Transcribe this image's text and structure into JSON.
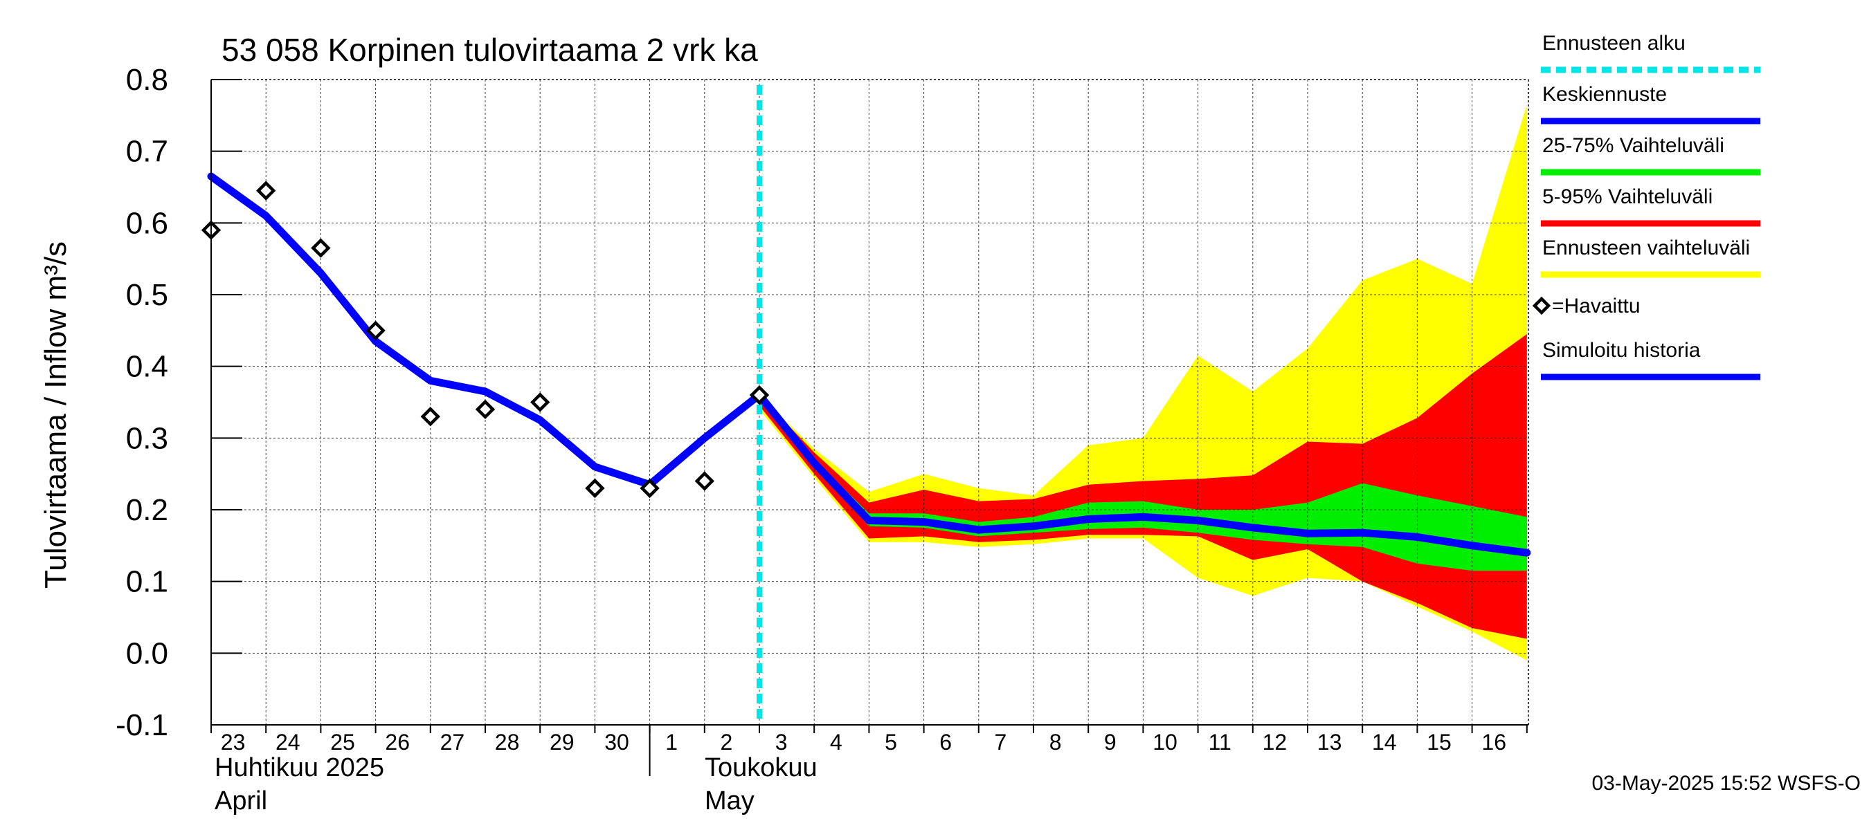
{
  "chart_data": {
    "type": "area",
    "title": "53 058 Korpinen tulovirtaama 2 vrk ka",
    "ylabel": "Tulovirtaama / Inflow    m³/s",
    "ylim": [
      -0.1,
      0.8
    ],
    "yticks": [
      "-0.1",
      "0.0",
      "0.1",
      "0.2",
      "0.3",
      "0.4",
      "0.5",
      "0.6",
      "0.7",
      "0.8"
    ],
    "grid": true,
    "x_tick_labels": [
      "23",
      "24",
      "25",
      "26",
      "27",
      "28",
      "29",
      "30",
      "1",
      "2",
      "3",
      "4",
      "5",
      "6",
      "7",
      "8",
      "9",
      "10",
      "11",
      "12",
      "13",
      "14",
      "15",
      "16"
    ],
    "x_dates": [
      "2025-04-23",
      "2025-04-24",
      "2025-04-25",
      "2025-04-26",
      "2025-04-27",
      "2025-04-28",
      "2025-04-29",
      "2025-04-30",
      "2025-05-01",
      "2025-05-02",
      "2025-05-03",
      "2025-05-04",
      "2025-05-05",
      "2025-05-06",
      "2025-05-07",
      "2025-05-08",
      "2025-05-09",
      "2025-05-10",
      "2025-05-11",
      "2025-05-12",
      "2025-05-13",
      "2025-05-14",
      "2025-05-15",
      "2025-05-16",
      "2025-05-17"
    ],
    "month_labels": {
      "april_fi": "Huhtikuu  2025",
      "april_en": "April",
      "may_fi": "Toukokuu",
      "may_en": "May"
    },
    "forecast_start": "2025-05-03",
    "legend_position": "right",
    "legend": [
      {
        "label": "Ennusteen alku",
        "color": "#00e5e5",
        "style": "dashed"
      },
      {
        "label": "Keskiennuste",
        "color": "#0000ff",
        "style": "solid"
      },
      {
        "label": "25-75% Vaihteluväli",
        "color": "#00ee00",
        "style": "solid"
      },
      {
        "label": "5-95% Vaihteluväli",
        "color": "#ff0000",
        "style": "solid"
      },
      {
        "label": "Ennusteen vaihteluväli",
        "color": "#ffff00",
        "style": "solid"
      },
      {
        "label": "=Havaittu",
        "color": "#000000",
        "style": "diamond"
      },
      {
        "label": "Simuloitu historia",
        "color": "#0000ff",
        "style": "solid"
      }
    ],
    "series": [
      {
        "name": "Simuloitu historia",
        "x": [
          "2025-04-23",
          "2025-04-24",
          "2025-04-25",
          "2025-04-26",
          "2025-04-27",
          "2025-04-28",
          "2025-04-29",
          "2025-04-30",
          "2025-05-01",
          "2025-05-02",
          "2025-05-03"
        ],
        "y": [
          0.665,
          0.61,
          0.53,
          0.435,
          0.38,
          0.365,
          0.325,
          0.26,
          0.235,
          0.3,
          0.36
        ]
      },
      {
        "name": "Keskiennuste",
        "x": [
          "2025-05-03",
          "2025-05-04",
          "2025-05-05",
          "2025-05-06",
          "2025-05-07",
          "2025-05-08",
          "2025-05-09",
          "2025-05-10",
          "2025-05-11",
          "2025-05-12",
          "2025-05-13",
          "2025-05-14",
          "2025-05-15",
          "2025-05-16",
          "2025-05-17"
        ],
        "y": [
          0.36,
          0.265,
          0.185,
          0.183,
          0.172,
          0.177,
          0.187,
          0.19,
          0.185,
          0.175,
          0.167,
          0.168,
          0.162,
          0.15,
          0.14
        ]
      },
      {
        "name": "=Havaittu",
        "x": [
          "2025-04-23",
          "2025-04-24",
          "2025-04-25",
          "2025-04-26",
          "2025-04-27",
          "2025-04-28",
          "2025-04-29",
          "2025-04-30",
          "2025-05-01",
          "2025-05-02",
          "2025-05-03"
        ],
        "y": [
          0.59,
          0.645,
          0.565,
          0.45,
          0.33,
          0.34,
          0.35,
          0.23,
          0.23,
          0.24,
          0.36
        ]
      }
    ],
    "bands": [
      {
        "name": "Ennusteen vaihteluväli",
        "x": [
          "2025-05-03",
          "2025-05-04",
          "2025-05-05",
          "2025-05-06",
          "2025-05-07",
          "2025-05-08",
          "2025-05-09",
          "2025-05-10",
          "2025-05-11",
          "2025-05-12",
          "2025-05-13",
          "2025-05-14",
          "2025-05-15",
          "2025-05-16",
          "2025-05-17"
        ],
        "upper": [
          0.36,
          0.285,
          0.225,
          0.25,
          0.23,
          0.22,
          0.29,
          0.3,
          0.415,
          0.365,
          0.425,
          0.52,
          0.55,
          0.515,
          0.765
        ],
        "lower": [
          0.34,
          0.245,
          0.155,
          0.155,
          0.148,
          0.152,
          0.16,
          0.16,
          0.105,
          0.08,
          0.105,
          0.1,
          0.065,
          0.03,
          -0.01
        ]
      },
      {
        "name": "5-95% Vaihteluväli",
        "x": [
          "2025-05-03",
          "2025-05-04",
          "2025-05-05",
          "2025-05-06",
          "2025-05-07",
          "2025-05-08",
          "2025-05-09",
          "2025-05-10",
          "2025-05-11",
          "2025-05-12",
          "2025-05-13",
          "2025-05-14",
          "2025-05-15",
          "2025-05-16",
          "2025-05-17"
        ],
        "upper": [
          0.36,
          0.28,
          0.21,
          0.228,
          0.212,
          0.215,
          0.235,
          0.24,
          0.243,
          0.248,
          0.295,
          0.292,
          0.328,
          0.39,
          0.445
        ],
        "lower": [
          0.345,
          0.25,
          0.16,
          0.163,
          0.155,
          0.158,
          0.165,
          0.165,
          0.163,
          0.13,
          0.145,
          0.1,
          0.07,
          0.035,
          0.02
        ]
      },
      {
        "name": "25-75% Vaihteluväli",
        "x": [
          "2025-05-03",
          "2025-05-04",
          "2025-05-05",
          "2025-05-06",
          "2025-05-07",
          "2025-05-08",
          "2025-05-09",
          "2025-05-10",
          "2025-05-11",
          "2025-05-12",
          "2025-05-13",
          "2025-05-14",
          "2025-05-15",
          "2025-05-16",
          "2025-05-17"
        ],
        "upper": [
          0.362,
          0.27,
          0.195,
          0.195,
          0.183,
          0.19,
          0.21,
          0.212,
          0.2,
          0.2,
          0.21,
          0.237,
          0.22,
          0.205,
          0.19
        ],
        "lower": [
          0.355,
          0.26,
          0.177,
          0.175,
          0.163,
          0.168,
          0.173,
          0.175,
          0.168,
          0.158,
          0.152,
          0.148,
          0.125,
          0.115,
          0.115
        ]
      }
    ],
    "timestamp": "03-May-2025 15:52 WSFS-O"
  }
}
